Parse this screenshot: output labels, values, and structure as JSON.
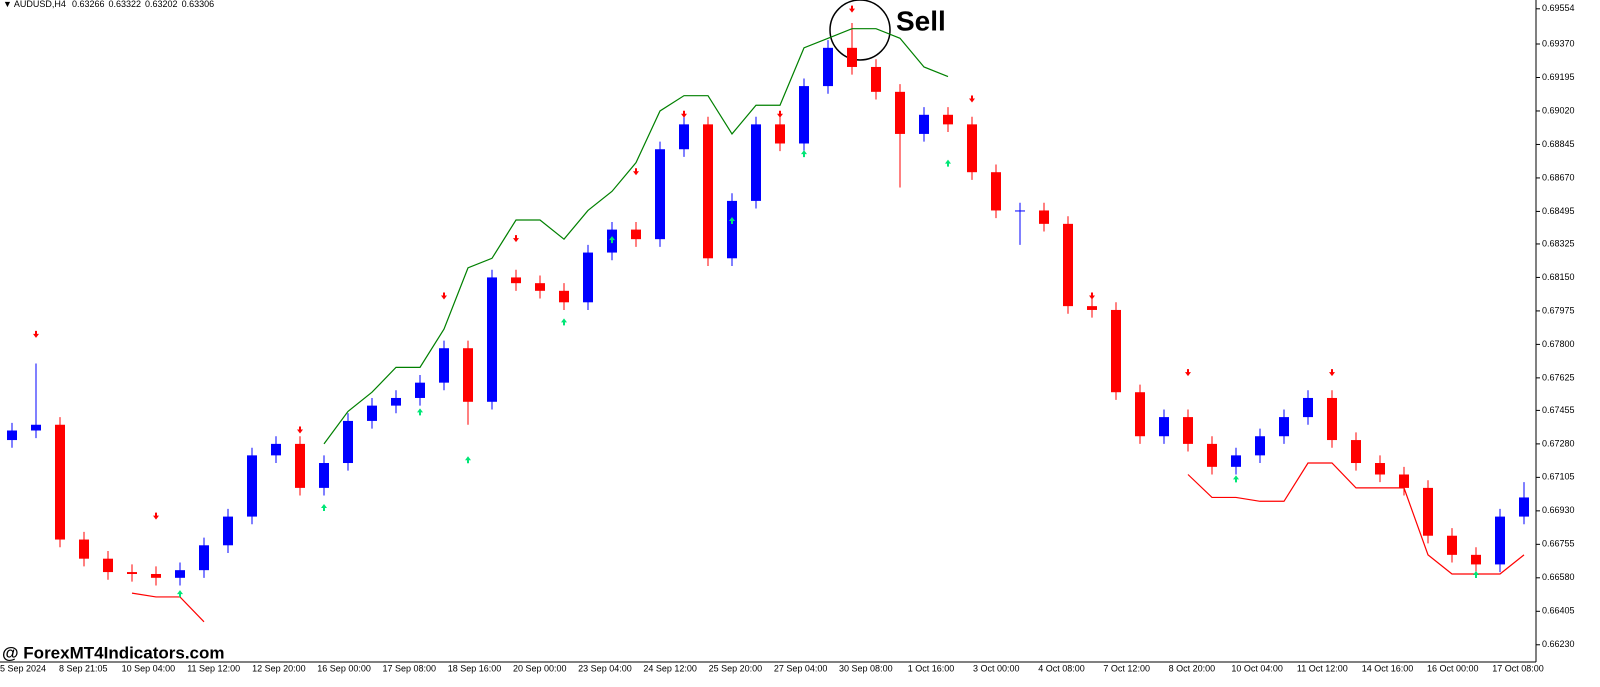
{
  "chart_data": {
    "type": "candlestick",
    "header": {
      "symbol": "AUDUSD,H4",
      "ohlc": [
        0.63266,
        0.63322,
        0.63202,
        0.63306
      ]
    },
    "annotation": "Sell",
    "watermark": "@ ForexMT4Indicators.com",
    "up_color": "#0000ff",
    "down_color": "#ff0000",
    "xtick_labels": [
      "5 Sep 2024",
      "8 Sep 21:05",
      "10 Sep 04:00",
      "11 Sep 12:00",
      "12 Sep 20:00",
      "16 Sep 00:00",
      "17 Sep 08:00",
      "18 Sep 16:00",
      "20 Sep 00:00",
      "23 Sep 04:00",
      "24 Sep 12:00",
      "25 Sep 20:00",
      "27 Sep 04:00",
      "30 Sep 08:00",
      "1 Oct 16:00",
      "3 Oct 00:00",
      "4 Oct 08:00",
      "7 Oct 12:00",
      "8 Oct 20:00",
      "10 Oct 04:00",
      "11 Oct 12:00",
      "14 Oct 16:00",
      "16 Oct 00:00",
      "17 Oct 08:00"
    ],
    "ylim": [
      0.6614,
      0.696
    ],
    "yticks": [
      {
        "value": 0.6623,
        "label": "0.66230"
      },
      0.66405,
      {
        "value": 0.6658,
        "label": "0.66580"
      },
      0.66755,
      {
        "value": 0.6693,
        "label": "0.66930"
      },
      0.67105,
      {
        "value": 0.6728,
        "label": "0.67280"
      },
      0.67455,
      0.67625,
      {
        "value": 0.678,
        "label": "0.67800"
      },
      0.67975,
      {
        "value": 0.6815,
        "label": "0.68150"
      },
      0.68325,
      0.68495,
      {
        "value": 0.6867,
        "label": "0.68670"
      },
      0.68845,
      {
        "value": 0.6902,
        "label": "0.69020"
      },
      0.69195,
      {
        "value": 0.6937,
        "label": "0.69370"
      },
      0.69554
    ],
    "open": [
      0.673,
      0.6735,
      0.6738,
      0.6678,
      0.6668,
      0.6661,
      0.666,
      0.6658,
      0.6662,
      0.6675,
      0.669,
      0.6722,
      0.6728,
      0.6705,
      0.6718,
      0.674,
      0.6748,
      0.6752,
      0.676,
      0.6778,
      0.675,
      0.6815,
      0.6812,
      0.6808,
      0.6802,
      0.6828,
      0.684,
      0.6835,
      0.6882,
      0.6895,
      0.6825,
      0.6855,
      0.6895,
      0.6885,
      0.6915,
      0.6935,
      0.6925,
      0.6912,
      0.689,
      0.69,
      0.6895,
      0.687,
      0.685,
      0.685,
      0.6843,
      0.68,
      0.6798,
      0.6755,
      0.6732,
      0.6742,
      0.6728,
      0.6716,
      0.6722,
      0.6732,
      0.6742,
      0.6752,
      0.673,
      0.6718,
      0.6712,
      0.6705,
      0.668,
      0.667,
      0.6665,
      0.669
    ],
    "high": [
      0.6739,
      0.677,
      0.6742,
      0.6682,
      0.6672,
      0.6665,
      0.6664,
      0.6666,
      0.6679,
      0.6694,
      0.6726,
      0.6732,
      0.6732,
      0.6722,
      0.6744,
      0.6752,
      0.6756,
      0.6764,
      0.6782,
      0.6782,
      0.6819,
      0.6819,
      0.6816,
      0.6812,
      0.6832,
      0.6844,
      0.6844,
      0.6886,
      0.6899,
      0.6899,
      0.6859,
      0.6899,
      0.6899,
      0.6919,
      0.6939,
      0.6948,
      0.6929,
      0.6916,
      0.6904,
      0.6904,
      0.6899,
      0.6874,
      0.6854,
      0.6854,
      0.6847,
      0.6804,
      0.6802,
      0.6759,
      0.6746,
      0.6746,
      0.6732,
      0.6726,
      0.6736,
      0.6746,
      0.6756,
      0.6756,
      0.6734,
      0.6722,
      0.6716,
      0.6709,
      0.6684,
      0.6674,
      0.6694,
      0.6708
    ],
    "low": [
      0.6726,
      0.6731,
      0.6674,
      0.6664,
      0.6657,
      0.6656,
      0.6654,
      0.6654,
      0.6658,
      0.6671,
      0.6686,
      0.6718,
      0.6701,
      0.6701,
      0.6714,
      0.6736,
      0.6744,
      0.6748,
      0.6756,
      0.6738,
      0.6746,
      0.6808,
      0.6804,
      0.6798,
      0.6798,
      0.6824,
      0.6831,
      0.6831,
      0.6878,
      0.6821,
      0.6821,
      0.6851,
      0.6881,
      0.6881,
      0.6911,
      0.6921,
      0.6908,
      0.6862,
      0.6886,
      0.6891,
      0.6866,
      0.6846,
      0.6832,
      0.6839,
      0.6796,
      0.6794,
      0.6751,
      0.6728,
      0.6728,
      0.6724,
      0.6712,
      0.6712,
      0.6718,
      0.6728,
      0.6738,
      0.6726,
      0.6714,
      0.6708,
      0.6701,
      0.6676,
      0.6666,
      0.6661,
      0.6661,
      0.6686
    ],
    "close": [
      0.6735,
      0.6738,
      0.6678,
      0.6668,
      0.6661,
      0.666,
      0.6658,
      0.6662,
      0.6675,
      0.669,
      0.6722,
      0.6728,
      0.6705,
      0.6718,
      0.674,
      0.6748,
      0.6752,
      0.676,
      0.6778,
      0.675,
      0.6815,
      0.6812,
      0.6808,
      0.6802,
      0.6828,
      0.684,
      0.6835,
      0.6882,
      0.6895,
      0.6825,
      0.6855,
      0.6895,
      0.6885,
      0.6915,
      0.6935,
      0.6925,
      0.6912,
      0.689,
      0.69,
      0.6895,
      0.687,
      0.685,
      0.685,
      0.6843,
      0.68,
      0.6798,
      0.6755,
      0.6732,
      0.6742,
      0.6728,
      0.6716,
      0.6722,
      0.6732,
      0.6742,
      0.6752,
      0.673,
      0.6718,
      0.6712,
      0.6705,
      0.668,
      0.667,
      0.6665,
      0.669,
      0.67
    ],
    "series": [
      {
        "color": "#008000",
        "values": [
          null,
          null,
          null,
          null,
          null,
          null,
          null,
          null,
          null,
          null,
          null,
          null,
          null,
          0.6728,
          0.6745,
          0.6755,
          0.6768,
          0.6768,
          0.6788,
          0.682,
          0.6825,
          0.6845,
          0.6845,
          0.6835,
          0.685,
          0.686,
          0.6875,
          0.6902,
          0.691,
          0.691,
          0.689,
          0.6905,
          0.6905,
          0.6935,
          0.694,
          0.6945,
          0.6945,
          0.694,
          0.6925,
          0.692,
          null,
          null,
          null,
          null,
          null,
          null,
          null,
          null,
          null,
          null,
          null,
          null,
          null,
          null,
          null,
          null,
          null,
          null,
          null,
          null,
          null,
          null,
          null,
          null
        ]
      },
      {
        "color": "#ff0000",
        "values": [
          null,
          null,
          null,
          null,
          null,
          0.665,
          0.6648,
          0.6648,
          0.6635,
          null,
          null,
          null,
          null,
          null,
          null,
          null,
          null,
          null,
          null,
          null,
          null,
          null,
          null,
          null,
          null,
          null,
          null,
          null,
          null,
          null,
          null,
          null,
          null,
          null,
          null,
          null,
          null,
          null,
          null,
          null,
          null,
          null,
          null,
          null,
          null,
          null,
          null,
          null,
          null,
          0.6712,
          0.67,
          0.67,
          0.6698,
          0.6698,
          0.6718,
          0.6718,
          0.6705,
          0.6705,
          0.6705,
          0.667,
          0.666,
          0.666,
          0.666,
          0.667
        ]
      }
    ],
    "sell_arrows": [
      {
        "x": 1,
        "y": 0.6785
      },
      {
        "x": 6,
        "y": 0.669
      },
      {
        "x": 12,
        "y": 0.6735
      },
      {
        "x": 18,
        "y": 0.6805
      },
      {
        "x": 21,
        "y": 0.6835
      },
      {
        "x": 26,
        "y": 0.687
      },
      {
        "x": 28,
        "y": 0.69
      },
      {
        "x": 32,
        "y": 0.69
      },
      {
        "x": 35,
        "y": 0.6955
      },
      {
        "x": 40,
        "y": 0.6908
      },
      {
        "x": 45,
        "y": 0.6805
      },
      {
        "x": 49,
        "y": 0.6765
      },
      {
        "x": 55,
        "y": 0.6765
      }
    ],
    "buy_arrows": [
      {
        "x": 7,
        "y": 0.665
      },
      {
        "x": 13,
        "y": 0.6695
      },
      {
        "x": 17,
        "y": 0.6745
      },
      {
        "x": 19,
        "y": 0.672
      },
      {
        "x": 23,
        "y": 0.6792
      },
      {
        "x": 25,
        "y": 0.6835
      },
      {
        "x": 30,
        "y": 0.6845
      },
      {
        "x": 33,
        "y": 0.688
      },
      {
        "x": 39,
        "y": 0.6875
      },
      {
        "x": 51,
        "y": 0.671
      },
      {
        "x": 61,
        "y": 0.666
      }
    ]
  }
}
